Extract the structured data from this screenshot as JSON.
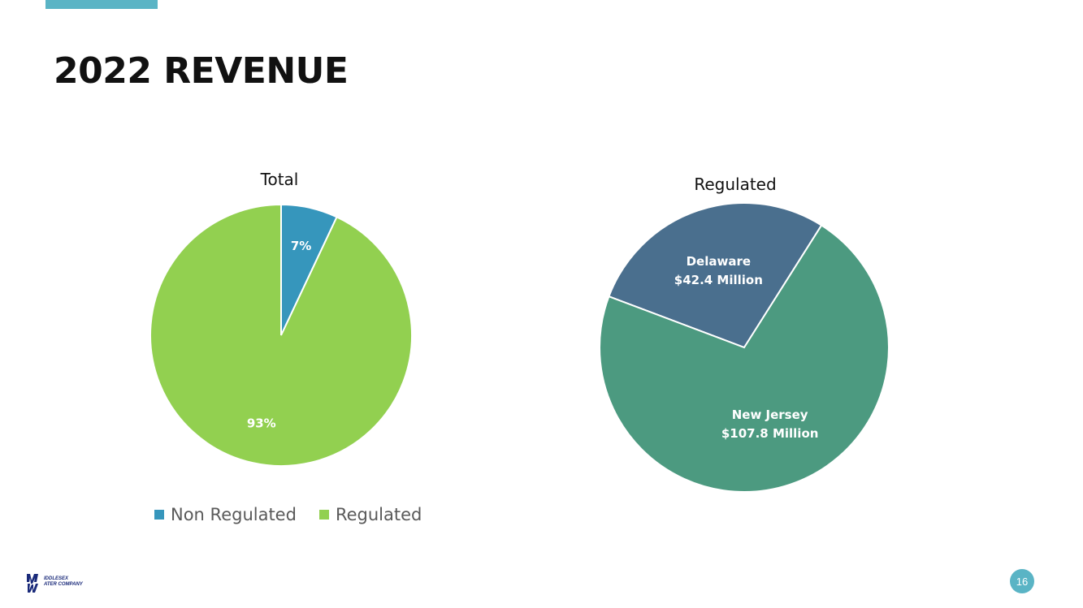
{
  "slide": {
    "title": "2022 REVENUE",
    "page_number": "16",
    "accent_color": "#5ab4c5",
    "logo": {
      "icon": "middlesex-water-logo-icon",
      "line1": "IDDLESEX",
      "line2": "ATER COMPANY"
    }
  },
  "chart_data": [
    {
      "type": "pie",
      "title": "Total",
      "slices": [
        {
          "name": "Non Regulated",
          "value": 7,
          "label": "7%",
          "color": "#3696bc"
        },
        {
          "name": "Regulated",
          "value": 93,
          "label": "93%",
          "color": "#92d050"
        }
      ],
      "legend": {
        "position": "bottom",
        "entries": [
          {
            "name": "Non Regulated",
            "color": "#3696bc"
          },
          {
            "name": "Regulated",
            "color": "#92d050"
          }
        ]
      }
    },
    {
      "type": "pie",
      "title": "Regulated",
      "slices": [
        {
          "name": "Delaware",
          "value": 42.4,
          "label_lines": [
            "Delaware",
            "$42.4 Million"
          ],
          "color": "#4a6f8e"
        },
        {
          "name": "New Jersey",
          "value": 107.8,
          "label_lines": [
            "New Jersey",
            "$107.8 Million"
          ],
          "color": "#4c9a80"
        }
      ]
    }
  ]
}
